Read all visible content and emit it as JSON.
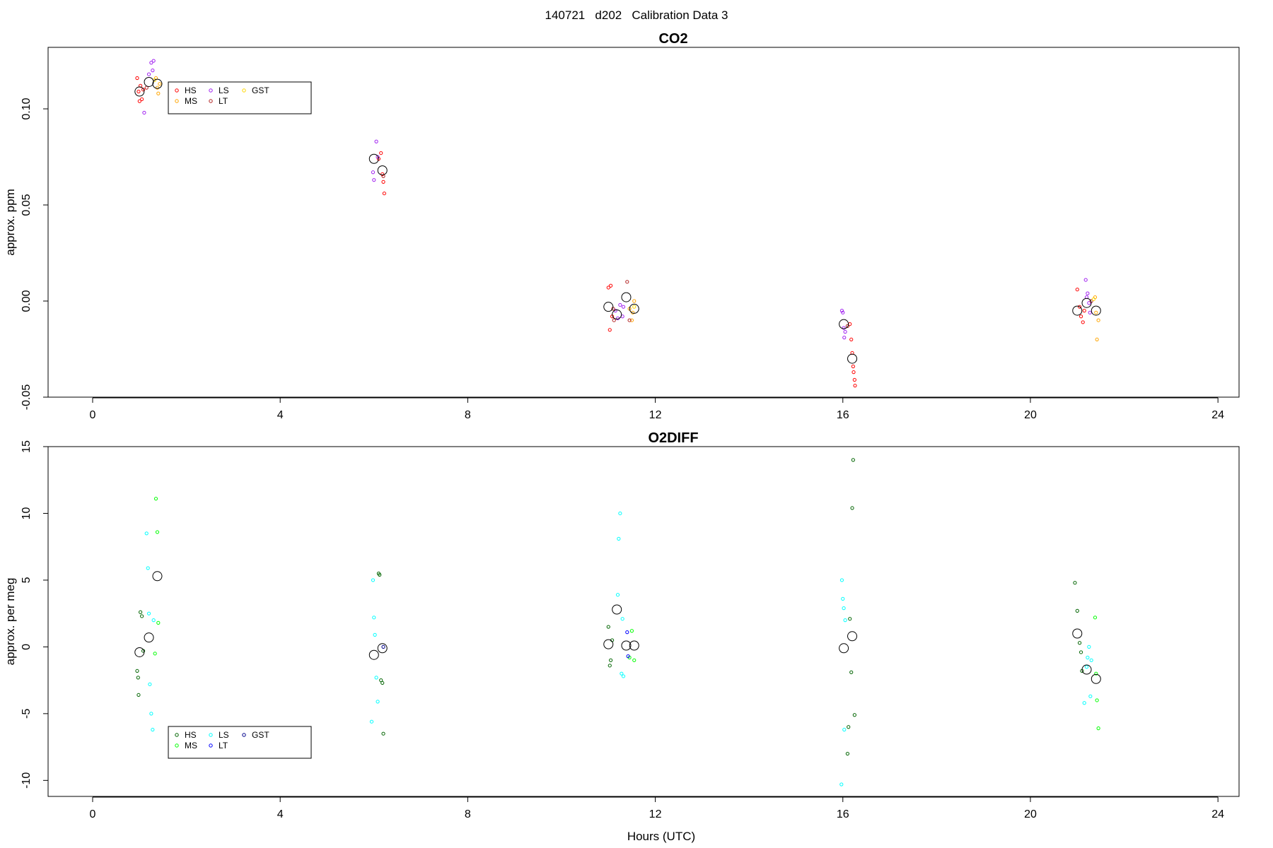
{
  "page": {
    "title": "140721   d202   Calibration Data 3"
  },
  "chart_data": [
    {
      "type": "scatter",
      "title": "CO2",
      "xlabel": "",
      "ylabel": "approx. ppm",
      "xlim": [
        -0.95,
        24.45
      ],
      "ylim": [
        -0.05,
        0.132
      ],
      "xticks": [
        0,
        4,
        8,
        12,
        16,
        20,
        24
      ],
      "xtick_labels": [
        "0",
        "4",
        "8",
        "12",
        "16",
        "20",
        "24"
      ],
      "yticks": [
        -0.05,
        0.0,
        0.05,
        0.1
      ],
      "ytick_labels": [
        "-0.05",
        "0.00",
        "0.05",
        "0.10"
      ],
      "legend_position": "top-left",
      "legend": [
        {
          "name": "HS",
          "color": "#ff0000"
        },
        {
          "name": "MS",
          "color": "#ffa500"
        },
        {
          "name": "LS",
          "color": "#a020f0"
        },
        {
          "name": "LT",
          "color": "#b22222"
        },
        {
          "name": "GST",
          "color": "#ffd700"
        }
      ],
      "series": [
        {
          "name": "HS",
          "color": "#ff0000",
          "points": [
            [
              0.95,
              0.116
            ],
            [
              0.98,
              0.109
            ],
            [
              1.0,
              0.104
            ],
            [
              1.02,
              0.112
            ],
            [
              1.05,
              0.105
            ],
            [
              1.08,
              0.11
            ],
            [
              6.1,
              0.074
            ],
            [
              6.15,
              0.077
            ],
            [
              6.2,
              0.062
            ],
            [
              6.22,
              0.056
            ],
            [
              6.18,
              0.066
            ],
            [
              11.0,
              0.007
            ],
            [
              11.03,
              -0.015
            ],
            [
              11.05,
              0.008
            ],
            [
              11.08,
              -0.008
            ],
            [
              16.15,
              -0.012
            ],
            [
              16.18,
              -0.02
            ],
            [
              16.2,
              -0.027
            ],
            [
              16.22,
              -0.034
            ],
            [
              16.25,
              -0.041
            ],
            [
              16.26,
              -0.044
            ],
            [
              16.23,
              -0.037
            ],
            [
              21.0,
              0.006
            ],
            [
              21.05,
              -0.003
            ],
            [
              21.08,
              -0.008
            ],
            [
              21.12,
              -0.011
            ],
            [
              21.15,
              -0.005
            ]
          ]
        },
        {
          "name": "MS",
          "color": "#ffa500",
          "points": [
            [
              1.35,
              0.116
            ],
            [
              1.38,
              0.111
            ],
            [
              1.4,
              0.108
            ],
            [
              1.43,
              0.113
            ],
            [
              11.45,
              -0.004
            ],
            [
              11.5,
              -0.01
            ],
            [
              11.55,
              0.0
            ],
            [
              11.52,
              -0.006
            ],
            [
              21.38,
              0.002
            ],
            [
              21.4,
              -0.006
            ],
            [
              21.42,
              -0.02
            ],
            [
              21.45,
              -0.01
            ]
          ]
        },
        {
          "name": "LS",
          "color": "#a020f0",
          "points": [
            [
              1.1,
              0.098
            ],
            [
              1.2,
              0.118
            ],
            [
              1.25,
              0.124
            ],
            [
              1.3,
              0.125
            ],
            [
              1.28,
              0.12
            ],
            [
              5.98,
              0.067
            ],
            [
              6.0,
              0.063
            ],
            [
              6.05,
              0.083
            ],
            [
              6.08,
              0.075
            ],
            [
              11.15,
              -0.005
            ],
            [
              11.2,
              -0.009
            ],
            [
              11.25,
              -0.002
            ],
            [
              11.3,
              -0.008
            ],
            [
              11.32,
              -0.003
            ],
            [
              15.98,
              -0.005
            ],
            [
              16.0,
              -0.006
            ],
            [
              16.02,
              -0.014
            ],
            [
              16.05,
              -0.016
            ],
            [
              16.03,
              -0.019
            ],
            [
              21.18,
              0.011
            ],
            [
              21.22,
              0.004
            ],
            [
              21.25,
              -0.001
            ],
            [
              21.27,
              -0.006
            ],
            [
              21.2,
              0.002
            ]
          ]
        },
        {
          "name": "LT",
          "color": "#b22222",
          "points": [
            [
              1.15,
              0.111
            ],
            [
              6.2,
              0.065
            ],
            [
              11.1,
              -0.004
            ],
            [
              11.12,
              -0.01
            ],
            [
              11.4,
              0.01
            ],
            [
              11.45,
              -0.01
            ],
            [
              16.1,
              -0.013
            ],
            [
              21.3,
              0.0
            ]
          ]
        },
        {
          "name": "GST",
          "color": "#ffd700",
          "points": [
            [
              1.32,
              0.115
            ],
            [
              11.55,
              -0.003
            ],
            [
              21.35,
              0.001
            ]
          ]
        },
        {
          "name": "mean",
          "color": "#000000",
          "large": true,
          "points": [
            [
              1.0,
              0.109
            ],
            [
              1.2,
              0.114
            ],
            [
              1.38,
              0.113
            ],
            [
              6.0,
              0.074
            ],
            [
              6.18,
              0.068
            ],
            [
              11.0,
              -0.003
            ],
            [
              11.18,
              -0.007
            ],
            [
              11.38,
              0.002
            ],
            [
              11.55,
              -0.004
            ],
            [
              16.02,
              -0.012
            ],
            [
              16.2,
              -0.03
            ],
            [
              21.0,
              -0.005
            ],
            [
              21.2,
              -0.001
            ],
            [
              21.4,
              -0.005
            ]
          ]
        }
      ]
    },
    {
      "type": "scatter",
      "title": "O2DIFF",
      "xlabel": "Hours (UTC)",
      "ylabel": "approx. per meg",
      "xlim": [
        -0.95,
        24.45
      ],
      "ylim": [
        -11.2,
        15.0
      ],
      "xticks": [
        0,
        4,
        8,
        12,
        16,
        20,
        24
      ],
      "xtick_labels": [
        "0",
        "4",
        "8",
        "12",
        "16",
        "20",
        "24"
      ],
      "yticks": [
        -10,
        -5,
        0,
        5,
        10,
        15
      ],
      "ytick_labels": [
        "-10",
        "-5",
        "0",
        "5",
        "10",
        "15"
      ],
      "legend_position": "bottom-left",
      "legend": [
        {
          "name": "HS",
          "color": "#006400"
        },
        {
          "name": "MS",
          "color": "#00ff00"
        },
        {
          "name": "LS",
          "color": "#00ffff"
        },
        {
          "name": "LT",
          "color": "#0000ff"
        },
        {
          "name": "GST",
          "color": "#00008b"
        }
      ],
      "series": [
        {
          "name": "HS",
          "color": "#006400",
          "points": [
            [
              0.95,
              -1.8
            ],
            [
              0.97,
              -2.3
            ],
            [
              0.98,
              -3.6
            ],
            [
              1.02,
              2.6
            ],
            [
              1.05,
              2.3
            ],
            [
              1.08,
              -0.3
            ],
            [
              6.1,
              5.5
            ],
            [
              6.12,
              5.4
            ],
            [
              6.15,
              -2.5
            ],
            [
              6.18,
              -2.7
            ],
            [
              6.2,
              -6.5
            ],
            [
              11.0,
              1.5
            ],
            [
              11.03,
              -1.4
            ],
            [
              11.05,
              -1.0
            ],
            [
              11.08,
              0.5
            ],
            [
              16.15,
              2.1
            ],
            [
              16.18,
              -1.9
            ],
            [
              16.2,
              10.4
            ],
            [
              16.22,
              14.0
            ],
            [
              16.25,
              -5.1
            ],
            [
              16.12,
              -6.0
            ],
            [
              16.1,
              -8.0
            ],
            [
              20.95,
              4.8
            ],
            [
              21.0,
              2.7
            ],
            [
              21.05,
              0.3
            ],
            [
              21.08,
              -0.4
            ],
            [
              21.1,
              -1.8
            ]
          ]
        },
        {
          "name": "MS",
          "color": "#00ff00",
          "points": [
            [
              1.35,
              11.1
            ],
            [
              1.38,
              8.6
            ],
            [
              1.4,
              1.8
            ],
            [
              1.33,
              -0.5
            ],
            [
              11.45,
              -0.8
            ],
            [
              11.5,
              1.2
            ],
            [
              11.55,
              -1.0
            ],
            [
              21.38,
              2.2
            ],
            [
              21.4,
              -2.0
            ],
            [
              21.42,
              -4.0
            ],
            [
              21.45,
              -6.1
            ]
          ]
        },
        {
          "name": "LS",
          "color": "#00ffff",
          "points": [
            [
              1.15,
              8.5
            ],
            [
              1.18,
              5.9
            ],
            [
              1.2,
              2.5
            ],
            [
              1.22,
              -2.8
            ],
            [
              1.25,
              -5.0
            ],
            [
              1.28,
              -6.2
            ],
            [
              1.3,
              2.0
            ],
            [
              5.98,
              5.0
            ],
            [
              6.0,
              2.2
            ],
            [
              6.02,
              0.9
            ],
            [
              6.05,
              -2.3
            ],
            [
              6.08,
              -4.1
            ],
            [
              5.95,
              -5.6
            ],
            [
              11.25,
              10.0
            ],
            [
              11.22,
              8.1
            ],
            [
              11.2,
              3.9
            ],
            [
              11.3,
              2.1
            ],
            [
              11.32,
              -2.2
            ],
            [
              11.28,
              -2.0
            ],
            [
              15.98,
              5.0
            ],
            [
              16.0,
              3.6
            ],
            [
              16.02,
              2.9
            ],
            [
              16.05,
              2.0
            ],
            [
              16.03,
              -6.2
            ],
            [
              15.97,
              -10.3
            ],
            [
              21.15,
              -4.2
            ],
            [
              21.2,
              -1.5
            ],
            [
              21.22,
              -0.8
            ],
            [
              21.25,
              0.0
            ],
            [
              21.28,
              -3.7
            ],
            [
              21.3,
              -1.0
            ]
          ]
        },
        {
          "name": "LT",
          "color": "#0000ff",
          "points": [
            [
              11.4,
              1.1
            ],
            [
              11.42,
              -0.7
            ]
          ]
        },
        {
          "name": "GST",
          "color": "#00008b",
          "points": [
            [
              6.2,
              0.0
            ]
          ]
        },
        {
          "name": "mean",
          "color": "#000000",
          "large": true,
          "points": [
            [
              1.0,
              -0.4
            ],
            [
              1.2,
              0.7
            ],
            [
              1.38,
              5.3
            ],
            [
              6.0,
              -0.6
            ],
            [
              6.18,
              -0.1
            ],
            [
              11.0,
              0.2
            ],
            [
              11.18,
              2.8
            ],
            [
              11.38,
              0.1
            ],
            [
              11.55,
              0.1
            ],
            [
              16.02,
              -0.1
            ],
            [
              16.2,
              0.8
            ],
            [
              21.0,
              1.0
            ],
            [
              21.2,
              -1.7
            ],
            [
              21.4,
              -2.4
            ]
          ]
        }
      ]
    }
  ]
}
